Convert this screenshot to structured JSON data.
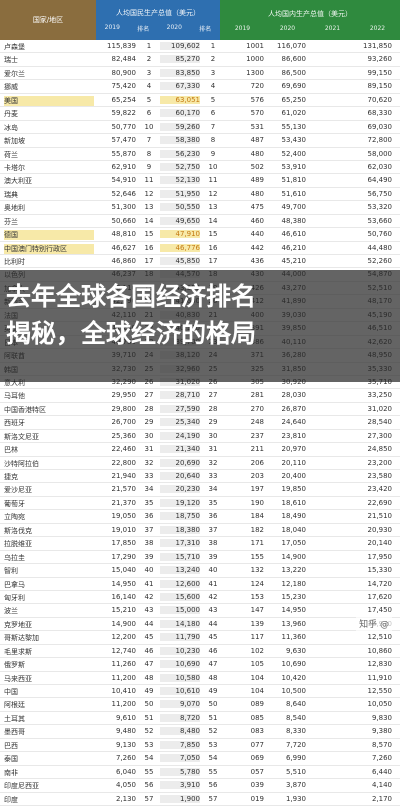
{
  "header": {
    "name_col": "国家/地区",
    "group_blue": "人均国民生产总值（美元）",
    "group_green": "人均国内生产总值（美元）",
    "sub_blue": [
      "2019",
      "排名",
      "2020",
      "排名"
    ],
    "sub_green": [
      "2019",
      "2020",
      "2021",
      "2022"
    ]
  },
  "rows": [
    {
      "name": "卢森堡",
      "v1": "115,839",
      "r1": "1",
      "v2": "109,602",
      "r2": "1",
      "v3": "1001",
      "v4": "116,070",
      "v5": "",
      "v6": "131,850"
    },
    {
      "name": "瑞士",
      "v1": "82,484",
      "r1": "2",
      "v2": "85,270",
      "r2": "2",
      "v3": "1000",
      "v4": "86,600",
      "v5": "",
      "v6": "93,260"
    },
    {
      "name": "爱尔兰",
      "v1": "80,900",
      "r1": "3",
      "v2": "83,850",
      "r2": "3",
      "v3": "1300",
      "v4": "86,500",
      "v5": "",
      "v6": "99,150"
    },
    {
      "name": "挪威",
      "v1": "75,420",
      "r1": "4",
      "v2": "67,330",
      "r2": "4",
      "v3": "720",
      "v4": "69,690",
      "v5": "",
      "v6": "89,150"
    },
    {
      "name": "美国",
      "v1": "65,254",
      "r1": "5",
      "v2": "63,051",
      "r2": "5",
      "v3": "576",
      "v4": "65,250",
      "v5": "",
      "v6": "70,620",
      "hl": true
    },
    {
      "name": "丹麦",
      "v1": "59,822",
      "r1": "6",
      "v2": "60,170",
      "r2": "6",
      "v3": "570",
      "v4": "61,020",
      "v5": "",
      "v6": "68,330"
    },
    {
      "name": "冰岛",
      "v1": "50,770",
      "r1": "10",
      "v2": "59,260",
      "r2": "7",
      "v3": "531",
      "v4": "55,130",
      "v5": "",
      "v6": "69,030"
    },
    {
      "name": "新加坡",
      "v1": "57,470",
      "r1": "7",
      "v2": "58,380",
      "r2": "8",
      "v3": "487",
      "v4": "53,430",
      "v5": "",
      "v6": "72,800"
    },
    {
      "name": "荷兰",
      "v1": "55,870",
      "r1": "8",
      "v2": "56,230",
      "r2": "9",
      "v3": "480",
      "v4": "52,400",
      "v5": "",
      "v6": "58,000"
    },
    {
      "name": "卡塔尔",
      "v1": "62,910",
      "r1": "9",
      "v2": "52,750",
      "r2": "10",
      "v3": "502",
      "v4": "53,910",
      "v5": "",
      "v6": "62,030"
    },
    {
      "name": "澳大利亚",
      "v1": "54,910",
      "r1": "11",
      "v2": "52,130",
      "r2": "11",
      "v3": "489",
      "v4": "51,810",
      "v5": "",
      "v6": "64,490"
    },
    {
      "name": "瑞典",
      "v1": "52,646",
      "r1": "12",
      "v2": "51,950",
      "r2": "12",
      "v3": "480",
      "v4": "51,610",
      "v5": "",
      "v6": "56,750"
    },
    {
      "name": "奥地利",
      "v1": "51,300",
      "r1": "13",
      "v2": "50,550",
      "r2": "13",
      "v3": "475",
      "v4": "49,700",
      "v5": "",
      "v6": "53,320"
    },
    {
      "name": "芬兰",
      "v1": "50,660",
      "r1": "14",
      "v2": "49,650",
      "r2": "14",
      "v3": "460",
      "v4": "48,380",
      "v5": "",
      "v6": "53,660"
    },
    {
      "name": "德国",
      "v1": "48,810",
      "r1": "15",
      "v2": "47,910",
      "r2": "15",
      "v3": "440",
      "v4": "46,610",
      "v5": "",
      "v6": "50,760",
      "hl": true
    },
    {
      "name": "中国澳门特别行政区",
      "v1": "46,627",
      "r1": "16",
      "v2": "46,776",
      "r2": "16",
      "v3": "442",
      "v4": "46,210",
      "v5": "",
      "v6": "44,480",
      "hl": true
    },
    {
      "name": "比利时",
      "v1": "46,860",
      "r1": "17",
      "v2": "45,850",
      "r2": "17",
      "v3": "436",
      "v4": "45,210",
      "v5": "",
      "v6": "52,260"
    },
    {
      "name": "以色列",
      "v1": "46,237",
      "r1": "18",
      "v2": "44,570",
      "r2": "18",
      "v3": "430",
      "v4": "44,000",
      "v5": "",
      "v6": "54,870"
    },
    {
      "name": "加拿大",
      "v1": "46,110",
      "r1": "19",
      "v2": "43,950",
      "r2": "19",
      "v3": "426",
      "v4": "43,270",
      "v5": "",
      "v6": "52,510"
    },
    {
      "name": "新西兰",
      "v1": "42,990",
      "r1": "20",
      "v2": "41,600",
      "r2": "20",
      "v3": "412",
      "v4": "41,890",
      "v5": "",
      "v6": "48,170"
    },
    {
      "name": "法国",
      "v1": "42,110",
      "r1": "21",
      "v2": "40,830",
      "r2": "21",
      "v3": "400",
      "v4": "39,030",
      "v5": "",
      "v6": "45,190"
    },
    {
      "name": "英国",
      "v1": "41,290",
      "r1": "22",
      "v2": "40,120",
      "r2": "22",
      "v3": "391",
      "v4": "39,850",
      "v5": "",
      "v6": "46,510"
    },
    {
      "name": "日本",
      "v1": "40,730",
      "r1": "23",
      "v2": "39,700",
      "r2": "23",
      "v3": "386",
      "v4": "40,110",
      "v5": "",
      "v6": "42,620"
    },
    {
      "name": "阿联酋",
      "v1": "39,710",
      "r1": "24",
      "v2": "38,120",
      "r2": "24",
      "v3": "371",
      "v4": "36,280",
      "v5": "",
      "v6": "48,950"
    },
    {
      "name": "韩国",
      "v1": "32,730",
      "r1": "25",
      "v2": "32,960",
      "r2": "25",
      "v3": "325",
      "v4": "31,850",
      "v5": "",
      "v6": "35,330"
    },
    {
      "name": "意大利",
      "v1": "32,290",
      "r1": "26",
      "v2": "31,020",
      "r2": "26",
      "v3": "305",
      "v4": "30,920",
      "v5": "",
      "v6": "35,710"
    },
    {
      "name": "马耳他",
      "v1": "29,950",
      "r1": "27",
      "v2": "28,710",
      "r2": "27",
      "v3": "281",
      "v4": "28,030",
      "v5": "",
      "v6": "33,250"
    },
    {
      "name": "中国香港特区",
      "v1": "29,800",
      "r1": "28",
      "v2": "27,590",
      "r2": "28",
      "v3": "270",
      "v4": "26,870",
      "v5": "",
      "v6": "31,020"
    },
    {
      "name": "西班牙",
      "v1": "26,700",
      "r1": "29",
      "v2": "25,340",
      "r2": "29",
      "v3": "248",
      "v4": "24,640",
      "v5": "",
      "v6": "28,540"
    },
    {
      "name": "斯洛文尼亚",
      "v1": "25,360",
      "r1": "30",
      "v2": "24,190",
      "r2": "30",
      "v3": "237",
      "v4": "23,810",
      "v5": "",
      "v6": "27,300"
    },
    {
      "name": "巴林",
      "v1": "22,460",
      "r1": "31",
      "v2": "21,340",
      "r2": "31",
      "v3": "211",
      "v4": "20,970",
      "v5": "",
      "v6": "24,850"
    },
    {
      "name": "沙特阿拉伯",
      "v1": "22,800",
      "r1": "32",
      "v2": "20,690",
      "r2": "32",
      "v3": "206",
      "v4": "20,110",
      "v5": "",
      "v6": "23,200"
    },
    {
      "name": "捷克",
      "v1": "21,940",
      "r1": "33",
      "v2": "20,640",
      "r2": "33",
      "v3": "203",
      "v4": "20,400",
      "v5": "",
      "v6": "23,580"
    },
    {
      "name": "爱沙尼亚",
      "v1": "21,570",
      "r1": "34",
      "v2": "20,230",
      "r2": "34",
      "v3": "197",
      "v4": "19,850",
      "v5": "",
      "v6": "23,420"
    },
    {
      "name": "葡萄牙",
      "v1": "21,370",
      "r1": "35",
      "v2": "19,120",
      "r2": "35",
      "v3": "190",
      "v4": "18,610",
      "v5": "",
      "v6": "22,690"
    },
    {
      "name": "立陶宛",
      "v1": "19,050",
      "r1": "36",
      "v2": "18,750",
      "r2": "36",
      "v3": "184",
      "v4": "18,490",
      "v5": "",
      "v6": "21,510"
    },
    {
      "name": "斯洛伐克",
      "v1": "19,010",
      "r1": "37",
      "v2": "18,380",
      "r2": "37",
      "v3": "182",
      "v4": "18,040",
      "v5": "",
      "v6": "20,930"
    },
    {
      "name": "拉脱维亚",
      "v1": "17,850",
      "r1": "38",
      "v2": "17,310",
      "r2": "38",
      "v3": "171",
      "v4": "17,050",
      "v5": "",
      "v6": "20,140"
    },
    {
      "name": "乌拉圭",
      "v1": "17,290",
      "r1": "39",
      "v2": "15,710",
      "r2": "39",
      "v3": "155",
      "v4": "14,900",
      "v5": "",
      "v6": "17,950"
    },
    {
      "name": "智利",
      "v1": "15,040",
      "r1": "40",
      "v2": "13,240",
      "r2": "40",
      "v3": "132",
      "v4": "13,220",
      "v5": "",
      "v6": "15,330"
    },
    {
      "name": "巴拿马",
      "v1": "14,950",
      "r1": "41",
      "v2": "12,600",
      "r2": "41",
      "v3": "124",
      "v4": "12,180",
      "v5": "",
      "v6": "14,720"
    },
    {
      "name": "匈牙利",
      "v1": "16,140",
      "r1": "42",
      "v2": "15,600",
      "r2": "42",
      "v3": "153",
      "v4": "15,230",
      "v5": "",
      "v6": "17,620"
    },
    {
      "name": "波兰",
      "v1": "15,210",
      "r1": "43",
      "v2": "15,000",
      "r2": "43",
      "v3": "147",
      "v4": "14,950",
      "v5": "",
      "v6": "17,450"
    },
    {
      "name": "克罗地亚",
      "v1": "14,900",
      "r1": "44",
      "v2": "14,180",
      "r2": "44",
      "v3": "139",
      "v4": "13,960",
      "v5": "",
      "v6": "16,970"
    },
    {
      "name": "哥斯达黎加",
      "v1": "12,200",
      "r1": "45",
      "v2": "11,790",
      "r2": "45",
      "v3": "117",
      "v4": "11,360",
      "v5": "",
      "v6": "12,510"
    },
    {
      "name": "毛里求斯",
      "v1": "12,740",
      "r1": "46",
      "v2": "10,230",
      "r2": "46",
      "v3": "102",
      "v4": "9,630",
      "v5": "",
      "v6": "10,860"
    },
    {
      "name": "俄罗斯",
      "v1": "11,260",
      "r1": "47",
      "v2": "10,690",
      "r2": "47",
      "v3": "105",
      "v4": "10,690",
      "v5": "",
      "v6": "12,830"
    },
    {
      "name": "马来西亚",
      "v1": "11,200",
      "r1": "48",
      "v2": "10,580",
      "r2": "48",
      "v3": "104",
      "v4": "10,420",
      "v5": "",
      "v6": "11,910"
    },
    {
      "name": "中国",
      "v1": "10,410",
      "r1": "49",
      "v2": "10,610",
      "r2": "49",
      "v3": "104",
      "v4": "10,500",
      "v5": "",
      "v6": "12,550"
    },
    {
      "name": "阿根廷",
      "v1": "11,200",
      "r1": "50",
      "v2": "9,070",
      "r2": "50",
      "v3": "089",
      "v4": "8,640",
      "v5": "",
      "v6": "10,050"
    },
    {
      "name": "土耳其",
      "v1": "9,610",
      "r1": "51",
      "v2": "8,720",
      "r2": "51",
      "v3": "085",
      "v4": "8,540",
      "v5": "",
      "v6": "9,830"
    },
    {
      "name": "墨西哥",
      "v1": "9,480",
      "r1": "52",
      "v2": "8,480",
      "r2": "52",
      "v3": "083",
      "v4": "8,330",
      "v5": "",
      "v6": "9,380"
    },
    {
      "name": "巴西",
      "v1": "9,130",
      "r1": "53",
      "v2": "7,850",
      "r2": "53",
      "v3": "077",
      "v4": "7,720",
      "v5": "",
      "v6": "8,570"
    },
    {
      "name": "泰国",
      "v1": "7,260",
      "r1": "54",
      "v2": "7,050",
      "r2": "54",
      "v3": "069",
      "v4": "6,990",
      "v5": "",
      "v6": "7,260"
    },
    {
      "name": "南非",
      "v1": "6,040",
      "r1": "55",
      "v2": "5,780",
      "r2": "55",
      "v3": "057",
      "v4": "5,510",
      "v5": "",
      "v6": "6,440"
    },
    {
      "name": "印度尼西亚",
      "v1": "4,050",
      "r1": "56",
      "v2": "3,910",
      "r2": "56",
      "v3": "039",
      "v4": "3,870",
      "v5": "",
      "v6": "4,140"
    },
    {
      "name": "印度",
      "v1": "2,130",
      "r1": "57",
      "v2": "1,900",
      "r2": "57",
      "v3": "019",
      "v4": "1,930",
      "v5": "",
      "v6": "2,170"
    }
  ],
  "overlay": {
    "line1": "去年全球各国经济排名",
    "line2": "揭秘，全球经济的格局"
  },
  "watermark": "知乎 @"
}
